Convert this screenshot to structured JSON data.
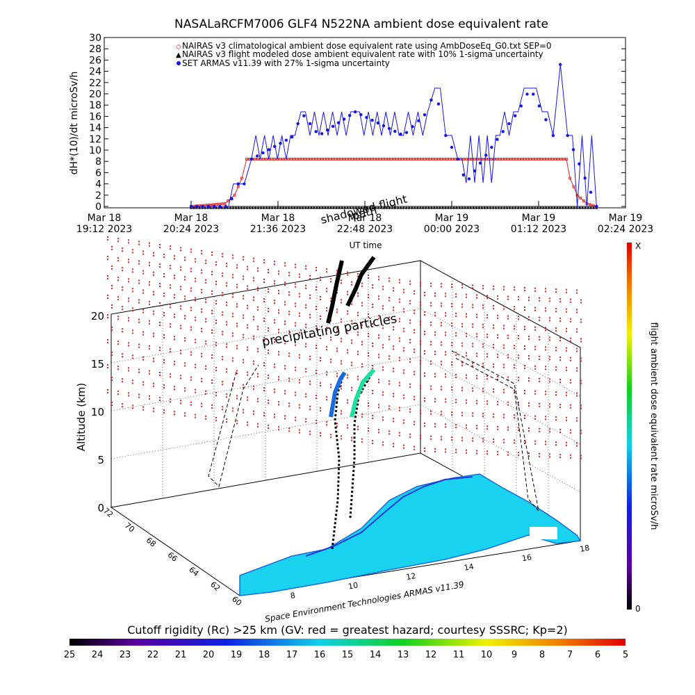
{
  "top_chart": {
    "title": "NASALaRCFM7006  GLF4 N522NA ambient dose equivalent rate",
    "ylabel": "dH*(10)/dt microSv/h",
    "xlabel": "UT time",
    "legend": [
      "NAIRAS v3 climatological ambient dose equivalent rate using AmbDoseEq_G0.txt SEP=0",
      "NAIRAS v3 flight modeled dose ambient equivalent rate with 10% 1-sigma uncertainty",
      "SET ARMAS v11.39 with 27% 1-sigma uncertainty"
    ],
    "x_ticks": [
      {
        "d": "Mar 18",
        "t": "19:12 2023"
      },
      {
        "d": "Mar 18",
        "t": "20:24 2023"
      },
      {
        "d": "Mar 18",
        "t": "21:36 2023"
      },
      {
        "d": "Mar 18",
        "t": "22:48 2023"
      },
      {
        "d": "Mar 19",
        "t": "00:00 2023"
      },
      {
        "d": "Mar 19",
        "t": "01:12 2023"
      },
      {
        "d": "Mar 19",
        "t": "02:24 2023"
      }
    ]
  },
  "chart_data": [
    {
      "type": "line",
      "title": "NASALaRCFM7006  GLF4 N522NA ambient dose equivalent rate",
      "xlabel": "UT time",
      "ylabel": "dH*(10)/dt microSv/h",
      "xlim": [
        "Mar 18 19:12 2023",
        "Mar 19 02:24 2023"
      ],
      "ylim": [
        0,
        30
      ],
      "y_ticks": [
        0,
        2,
        4,
        6,
        8,
        10,
        12,
        14,
        16,
        18,
        20,
        22,
        24,
        26,
        28,
        30
      ],
      "series": [
        {
          "name": "NAIRAS v3 climatological ambient dose equivalent rate using AmbDoseEq_G0.txt SEP=0",
          "color": "#e0201a",
          "x": [
            "Mar 18 20:24",
            "Mar 18 20:52",
            "Mar 18 21:00",
            "Mar 18 21:06",
            "Mar 18 21:10",
            "Mar 19 01:35",
            "Mar 19 01:38",
            "Mar 19 01:44",
            "Mar 19 01:52",
            "Mar 19 02:00"
          ],
          "values": [
            0,
            0.5,
            2,
            5,
            8.4,
            8.4,
            5,
            2,
            0.5,
            0
          ]
        },
        {
          "name": "NAIRAS v3 flight modeled dose ambient equivalent rate with 10% 1-sigma uncertainty",
          "color": "#000000",
          "x": [
            "Mar 18 20:24",
            "Mar 19 02:00"
          ],
          "values": [
            0,
            0
          ]
        },
        {
          "name": "SET ARMAS v11.39 with 27% 1-sigma uncertainty",
          "color": "#1414e6",
          "x": [
            "Mar 18 20:24",
            "Mar 18 20:55",
            "Mar 18 21:03",
            "Mar 18 21:08",
            "Mar 18 21:14",
            "Mar 18 21:50",
            "Mar 18 21:55",
            "Mar 18 22:10",
            "Mar 18 22:40",
            "Mar 18 23:20",
            "Mar 18 23:40",
            "Mar 18 23:46",
            "Mar 18 23:55",
            "Mar 19 00:05",
            "Mar 19 00:12",
            "Mar 19 00:40",
            "Mar 19 00:55",
            "Mar 19 01:05",
            "Mar 19 01:15",
            "Mar 19 01:24",
            "Mar 19 01:30",
            "Mar 19 01:36",
            "Mar 19 02:00"
          ],
          "values": [
            0,
            0,
            4,
            4,
            8.4,
            12.6,
            16.8,
            12.6,
            16.8,
            12.6,
            16.8,
            21,
            12.6,
            8.4,
            4.2,
            12.6,
            16.8,
            21,
            16.8,
            12.6,
            25.2,
            12.6,
            0
          ]
        }
      ]
    }
  ],
  "bottom_chart": {
    "zlabel": "Altitude (km)",
    "z_ticks": [
      "0",
      "5",
      "10",
      "15",
      "20"
    ],
    "lat_ticks": [
      "60",
      "62",
      "64",
      "66",
      "68",
      "70",
      "72"
    ],
    "lon_ticks": [
      "8",
      "10",
      "12",
      "14",
      "16",
      "18"
    ],
    "annotations": {
      "shadowed": "shadowed flight",
      "path": "path",
      "precipitating": "precipitating particles"
    },
    "credit": "Space Environment Technologies ARMAS v11.39",
    "colorbar_label": "flight ambient dose equivalent rate microSv/h",
    "colorbar_top": "X",
    "colorbar_bottom": "0",
    "rigidity_label": "Cutoff rigidity (Rc) >25 km (GV: red = greatest hazard; courtesy SSSRC; Kp=2)",
    "rigidity_ticks": [
      "25",
      "24",
      "23",
      "22",
      "21",
      "20",
      "19",
      "18",
      "17",
      "16",
      "15",
      "14",
      "13",
      "12",
      "11",
      "10",
      "9",
      "8",
      "7",
      "6",
      "5"
    ]
  },
  "colors": {
    "nairas_red": "#e0201a",
    "armas_blue": "#1414e6",
    "land": "#19d2f0",
    "particles": "#e0201a"
  }
}
